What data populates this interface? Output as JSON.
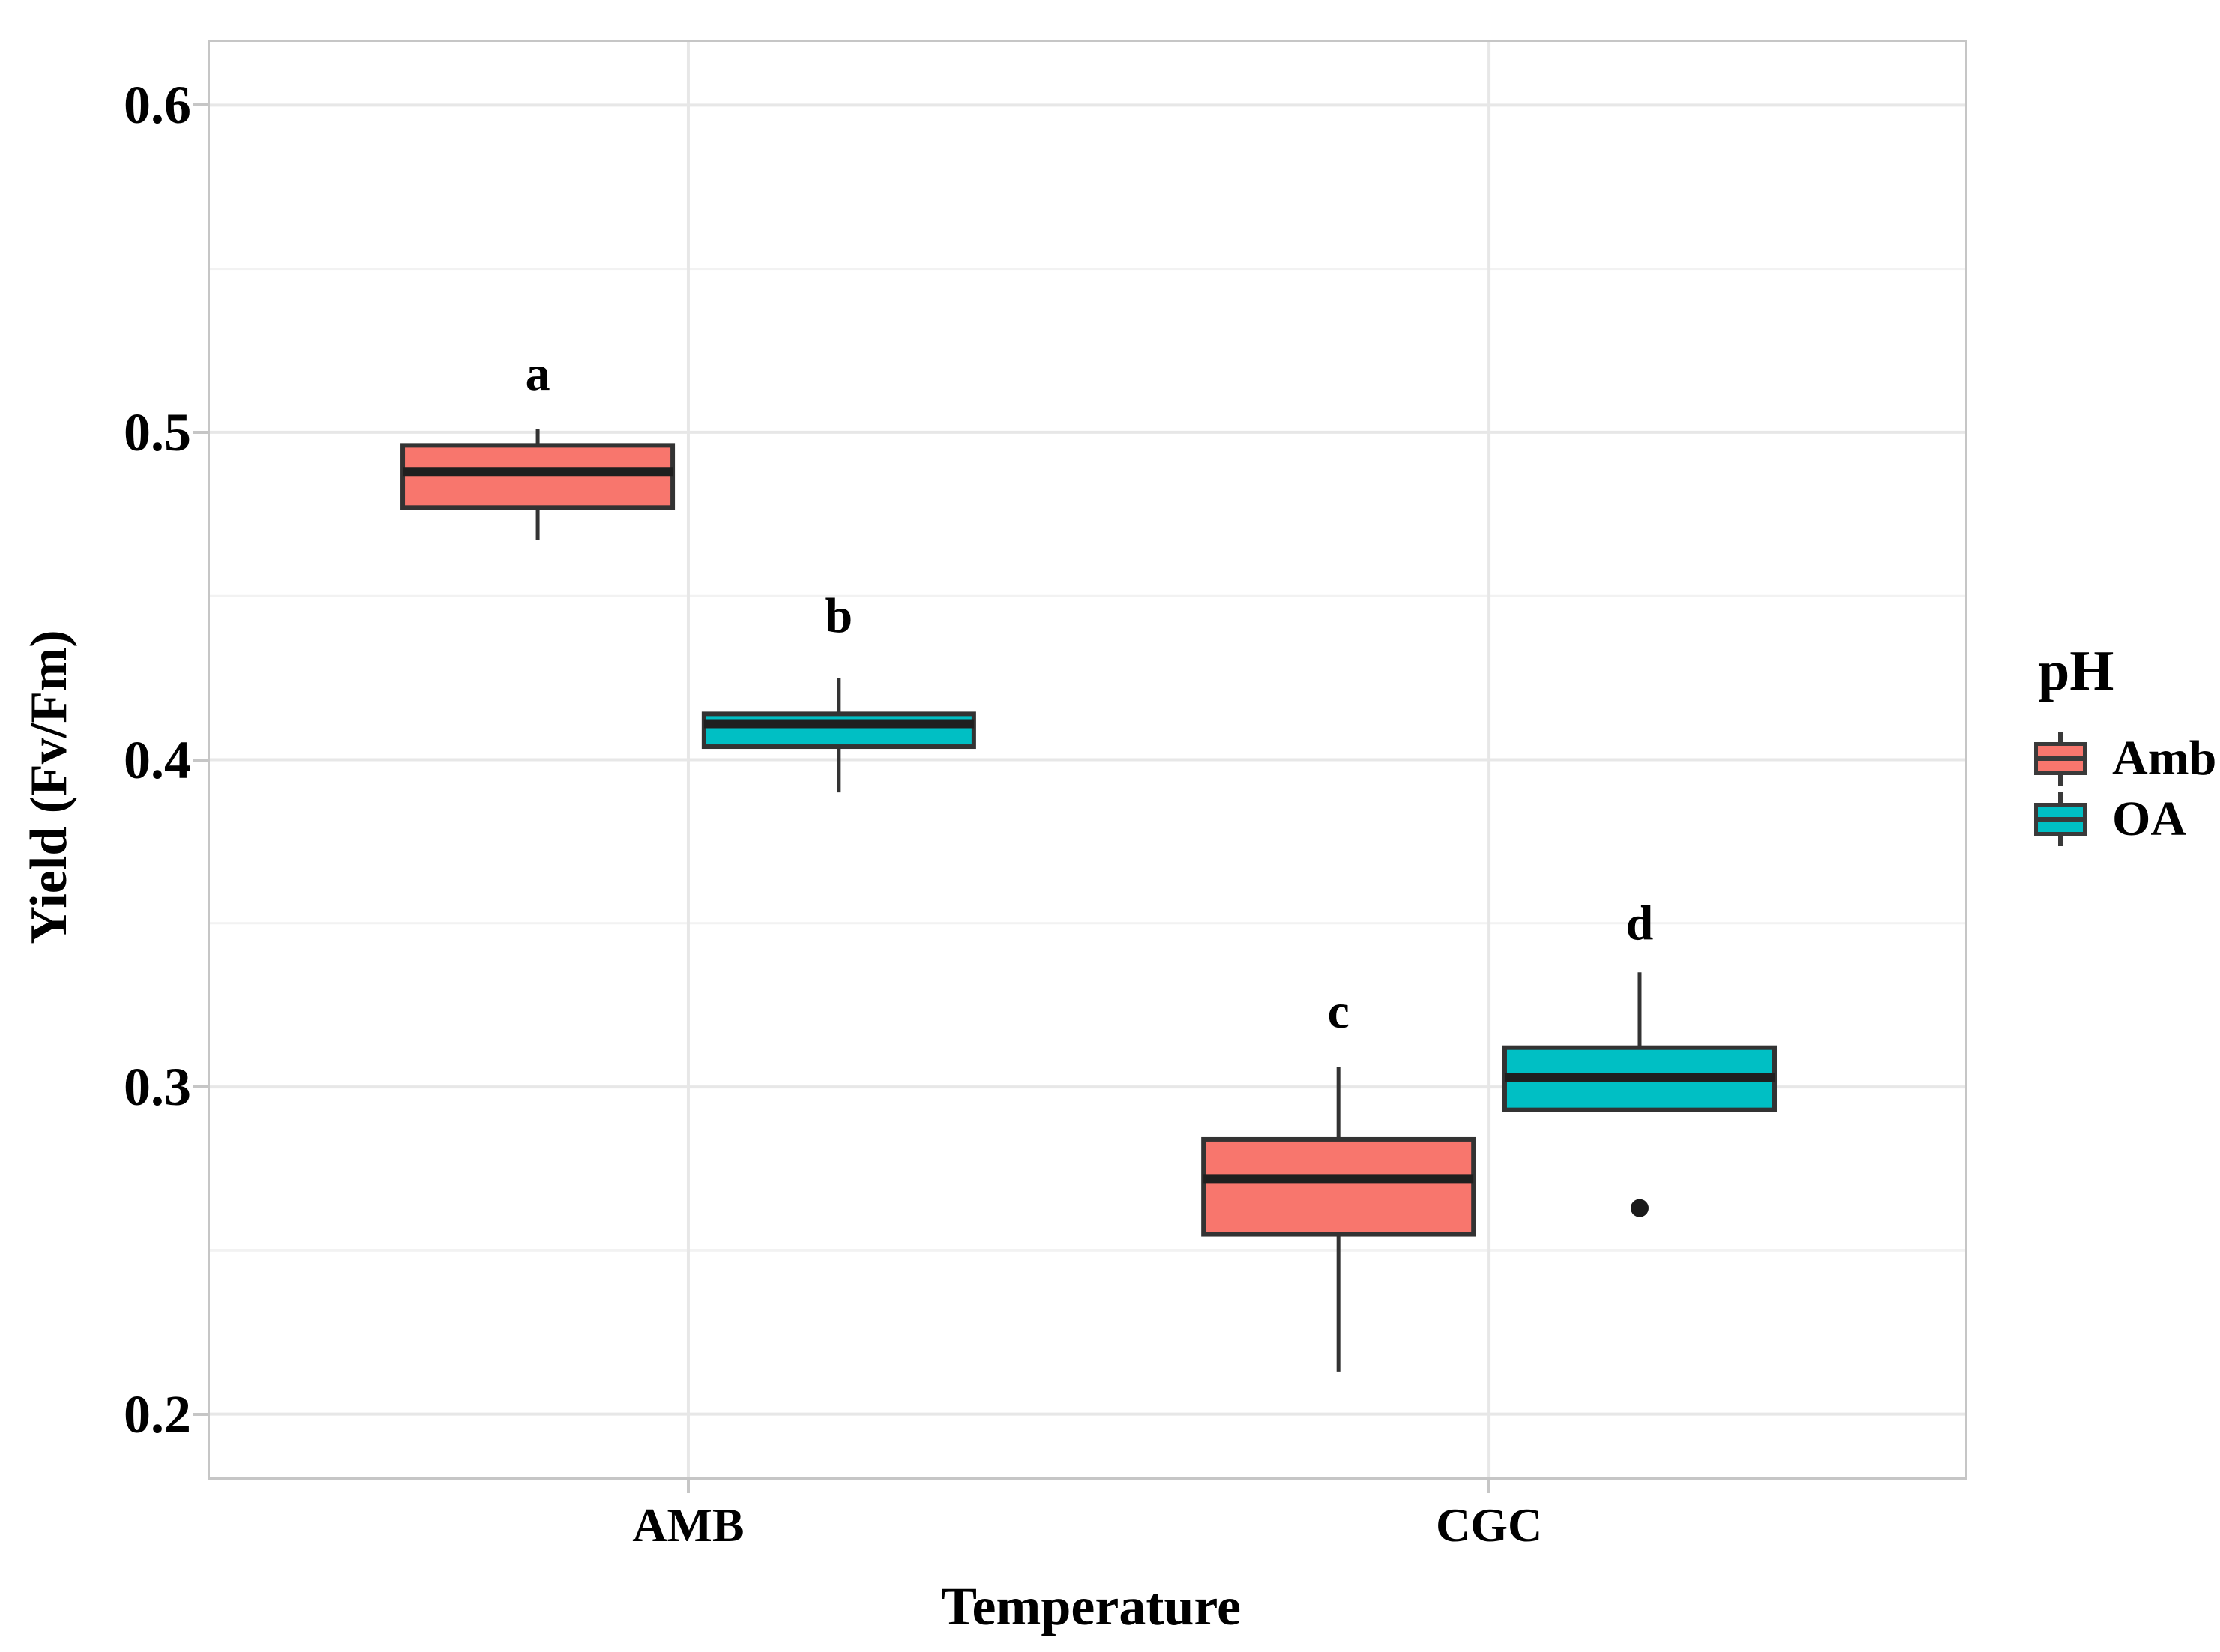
{
  "chart_data": {
    "type": "boxplot",
    "title": "",
    "xlabel": "Temperature",
    "ylabel": "Yield (Fv/Fm)",
    "categories": [
      "AMB",
      "CGC"
    ],
    "ylim": [
      0.18,
      0.62
    ],
    "yticks": [
      0.2,
      0.3,
      0.4,
      0.5,
      0.6
    ],
    "ytick_labels": [
      "0.2",
      "0.3",
      "0.4",
      "0.5",
      "0.6"
    ],
    "minor_yticks": [
      0.25,
      0.35,
      0.45,
      0.55
    ],
    "grid": true,
    "legend": {
      "title": "pH",
      "position": "right",
      "entries": [
        "Amb",
        "OA"
      ]
    },
    "colors": {
      "Amb": "#F8766D",
      "OA": "#00BFC4",
      "outline": "#333333",
      "median": "#1f1f1f",
      "outlier": "#1a1a1a",
      "grid_major": "#e7e7e7",
      "grid_minor": "#f2f2f2",
      "panel_border": "#c6c6c6",
      "text": "#000000"
    },
    "series": [
      {
        "name": "Amb",
        "color_key": "Amb",
        "boxes": [
          {
            "category": "AMB",
            "whisker_low": 0.467,
            "q1": 0.477,
            "median": 0.488,
            "q3": 0.496,
            "whisker_high": 0.501,
            "outliers": [],
            "sig_letter": "a",
            "sig_letter_y": 0.518
          },
          {
            "category": "CGC",
            "whisker_low": 0.213,
            "q1": 0.255,
            "median": 0.272,
            "q3": 0.284,
            "whisker_high": 0.306,
            "outliers": [],
            "sig_letter": "c",
            "sig_letter_y": 0.323
          }
        ]
      },
      {
        "name": "OA",
        "color_key": "OA",
        "boxes": [
          {
            "category": "AMB",
            "whisker_low": 0.39,
            "q1": 0.404,
            "median": 0.411,
            "q3": 0.414,
            "whisker_high": 0.425,
            "outliers": [],
            "sig_letter": "b",
            "sig_letter_y": 0.444
          },
          {
            "category": "CGC",
            "whisker_low": null,
            "q1": 0.293,
            "median": 0.303,
            "q3": 0.312,
            "whisker_high": 0.335,
            "outliers": [
              0.263
            ],
            "sig_letter": "d",
            "sig_letter_y": 0.35
          }
        ]
      }
    ]
  }
}
